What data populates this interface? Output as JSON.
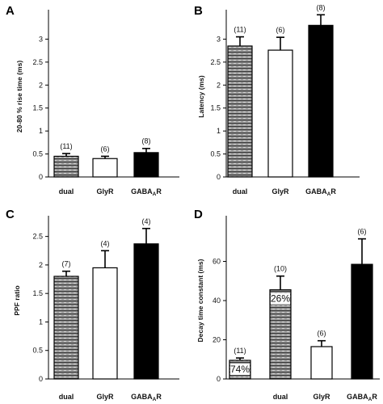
{
  "chart_data": [
    {
      "panel": "A",
      "type": "bar",
      "ylabel": "20-80 % rise time (ms)",
      "ylim": [
        0,
        3.5
      ],
      "yticks": [
        0,
        0.5,
        1,
        1.5,
        2,
        2.5,
        3
      ],
      "categories": [
        "dual",
        "GlyR",
        "GABA_AR"
      ],
      "category_labels": [
        {
          "main": "dual",
          "sub": ""
        },
        {
          "main": "GlyR",
          "sub": ""
        },
        {
          "main": "GABA",
          "sub": "A",
          "tail": "R"
        }
      ],
      "values": [
        0.45,
        0.4,
        0.53
      ],
      "errors": [
        0.06,
        0.05,
        0.09
      ],
      "n_labels": [
        "(11)",
        "(6)",
        "(8)"
      ],
      "fills": [
        "striped",
        "white",
        "black"
      ],
      "inner_labels": [
        "",
        "",
        ""
      ]
    },
    {
      "panel": "B",
      "type": "bar",
      "ylabel": "Latency (ms)",
      "ylim": [
        0,
        3.5
      ],
      "yticks": [
        0,
        0.5,
        1,
        1.5,
        2,
        2.5,
        3
      ],
      "categories": [
        "dual",
        "GlyR",
        "GABA_AR"
      ],
      "category_labels": [
        {
          "main": "dual",
          "sub": ""
        },
        {
          "main": "GlyR",
          "sub": ""
        },
        {
          "main": "GABA",
          "sub": "A",
          "tail": "R"
        }
      ],
      "values": [
        2.85,
        2.76,
        3.3
      ],
      "errors": [
        0.2,
        0.28,
        0.23
      ],
      "n_labels": [
        "(11)",
        "(6)",
        "(8)"
      ],
      "fills": [
        "striped",
        "white",
        "black"
      ],
      "inner_labels": [
        "",
        "",
        ""
      ]
    },
    {
      "panel": "C",
      "type": "bar",
      "ylabel": "PPF ratio",
      "ylim": [
        0,
        2.75
      ],
      "yticks": [
        0,
        0.5,
        1,
        1.5,
        2,
        2.5
      ],
      "categories": [
        "dual",
        "GlyR",
        "GABA_AR"
      ],
      "category_labels": [
        {
          "main": "dual",
          "sub": ""
        },
        {
          "main": "GlyR",
          "sub": ""
        },
        {
          "main": "GABA",
          "sub": "A",
          "tail": "R"
        }
      ],
      "values": [
        1.8,
        1.95,
        2.37
      ],
      "errors": [
        0.09,
        0.3,
        0.27
      ],
      "n_labels": [
        "(7)",
        "(4)",
        "(4)"
      ],
      "fills": [
        "striped",
        "white",
        "black"
      ],
      "inner_labels": [
        "",
        "",
        ""
      ]
    },
    {
      "panel": "D",
      "type": "bar",
      "ylabel": "Decay time constant (ms)",
      "ylim": [
        0,
        80
      ],
      "yticks": [
        0,
        20,
        40,
        60
      ],
      "categories": [
        "",
        "dual",
        "GlyR",
        "GABA_AR"
      ],
      "category_labels": [
        {
          "main": "",
          "sub": ""
        },
        {
          "main": "dual",
          "sub": ""
        },
        {
          "main": "GlyR",
          "sub": ""
        },
        {
          "main": "GABA",
          "sub": "A",
          "tail": "R"
        }
      ],
      "values": [
        9.5,
        45.5,
        16.5,
        58.5
      ],
      "errors": [
        1.2,
        7,
        3,
        13
      ],
      "n_labels": [
        "(11)",
        "(10)",
        "(6)",
        "(6)"
      ],
      "fills": [
        "striped",
        "striped",
        "white",
        "black"
      ],
      "inner_labels": [
        "74%",
        "26%",
        "",
        ""
      ]
    }
  ]
}
